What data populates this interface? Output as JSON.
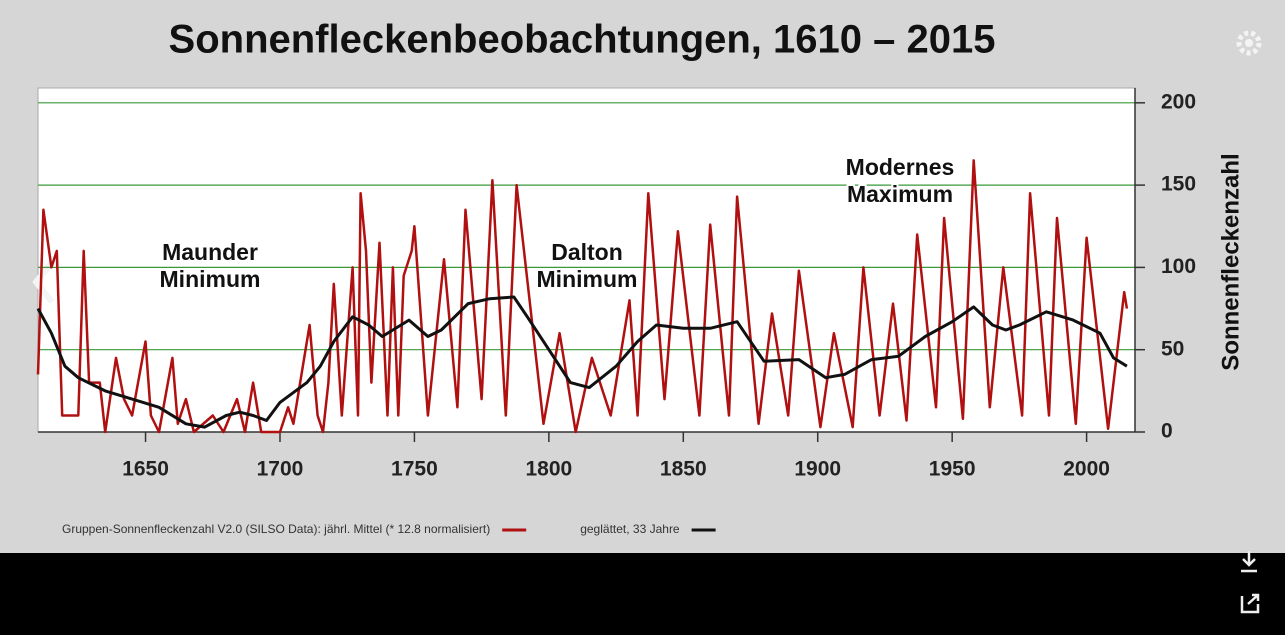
{
  "chart_data": {
    "type": "line",
    "title": "Sonnenfleckenbeobachtungen, 1610 – 2015",
    "ylabel": "Sonnenfleckenzahl",
    "xlim": [
      1610,
      2018
    ],
    "xticks": [
      1650,
      1700,
      1750,
      1800,
      1850,
      1900,
      1950,
      2000
    ],
    "ylim": [
      0,
      209
    ],
    "yticks": [
      0,
      50,
      100,
      150,
      200
    ],
    "grid": true,
    "grid_color": "#3a9a3a",
    "legend": "bottom",
    "annotations": [
      {
        "lines": [
          "Maunder",
          "Minimum"
        ]
      },
      {
        "lines": [
          "Dalton",
          "Minimum"
        ]
      },
      {
        "lines": [
          "Modernes",
          "Maximum"
        ]
      }
    ],
    "series": [
      {
        "name": "Gruppen-Sonnenfleckenzahl V2.0 (SILSO Data): jährl. Mittel (* 12.8 normalisiert)",
        "color": "#b01010",
        "x": [
          1610,
          1612,
          1615,
          1617,
          1619,
          1625,
          1627,
          1629,
          1633,
          1635,
          1639,
          1642,
          1645,
          1650,
          1652,
          1655,
          1660,
          1662,
          1665,
          1668,
          1675,
          1679,
          1684,
          1687,
          1690,
          1693,
          1700,
          1703,
          1705,
          1711,
          1714,
          1716,
          1718,
          1720,
          1723,
          1727,
          1729,
          1730,
          1732,
          1734,
          1737,
          1740,
          1742,
          1744,
          1746,
          1749,
          1750,
          1755,
          1761,
          1766,
          1769,
          1775,
          1779,
          1784,
          1788,
          1798,
          1804,
          1810,
          1816,
          1823,
          1830,
          1833,
          1837,
          1843,
          1848,
          1856,
          1860,
          1867,
          1870,
          1878,
          1883,
          1889,
          1893,
          1901,
          1906,
          1913,
          1917,
          1923,
          1928,
          1933,
          1937,
          1944,
          1947,
          1954,
          1958,
          1964,
          1969,
          1976,
          1979,
          1986,
          1989,
          1996,
          2000,
          2008,
          2014,
          2015
        ],
        "values": [
          35,
          135,
          100,
          110,
          10,
          10,
          110,
          30,
          30,
          0,
          45,
          20,
          10,
          55,
          10,
          0,
          45,
          5,
          20,
          0,
          10,
          0,
          20,
          0,
          30,
          0,
          0,
          15,
          5,
          65,
          10,
          0,
          30,
          90,
          10,
          100,
          10,
          145,
          110,
          30,
          115,
          10,
          100,
          10,
          95,
          110,
          125,
          10,
          105,
          15,
          135,
          20,
          153,
          10,
          150,
          5,
          60,
          0,
          45,
          10,
          80,
          10,
          145,
          20,
          122,
          10,
          126,
          10,
          143,
          5,
          72,
          10,
          98,
          3,
          60,
          3,
          100,
          10,
          78,
          7,
          120,
          15,
          130,
          8,
          165,
          15,
          100,
          10,
          145,
          10,
          130,
          5,
          118,
          2,
          85,
          75
        ]
      },
      {
        "name": "geglättet, 33 Jahre",
        "color": "#111111",
        "x": [
          1610,
          1615,
          1620,
          1625,
          1635,
          1645,
          1655,
          1665,
          1672,
          1680,
          1685,
          1690,
          1695,
          1700,
          1710,
          1715,
          1720,
          1727,
          1733,
          1738,
          1748,
          1755,
          1760,
          1770,
          1778,
          1787,
          1792,
          1800,
          1808,
          1815,
          1825,
          1833,
          1840,
          1850,
          1860,
          1870,
          1880,
          1893,
          1903,
          1910,
          1920,
          1930,
          1940,
          1950,
          1958,
          1965,
          1970,
          1975,
          1985,
          1995,
          2005,
          2010,
          2015
        ],
        "values": [
          75,
          60,
          40,
          33,
          25,
          20,
          15,
          5,
          3,
          10,
          12,
          10,
          7,
          18,
          30,
          40,
          55,
          70,
          65,
          58,
          68,
          58,
          62,
          78,
          81,
          82,
          70,
          50,
          30,
          27,
          40,
          55,
          65,
          63,
          63,
          67,
          43,
          44,
          33,
          35,
          44,
          46,
          58,
          67,
          76,
          65,
          62,
          65,
          73,
          68,
          60,
          45,
          40
        ]
      }
    ]
  }
}
